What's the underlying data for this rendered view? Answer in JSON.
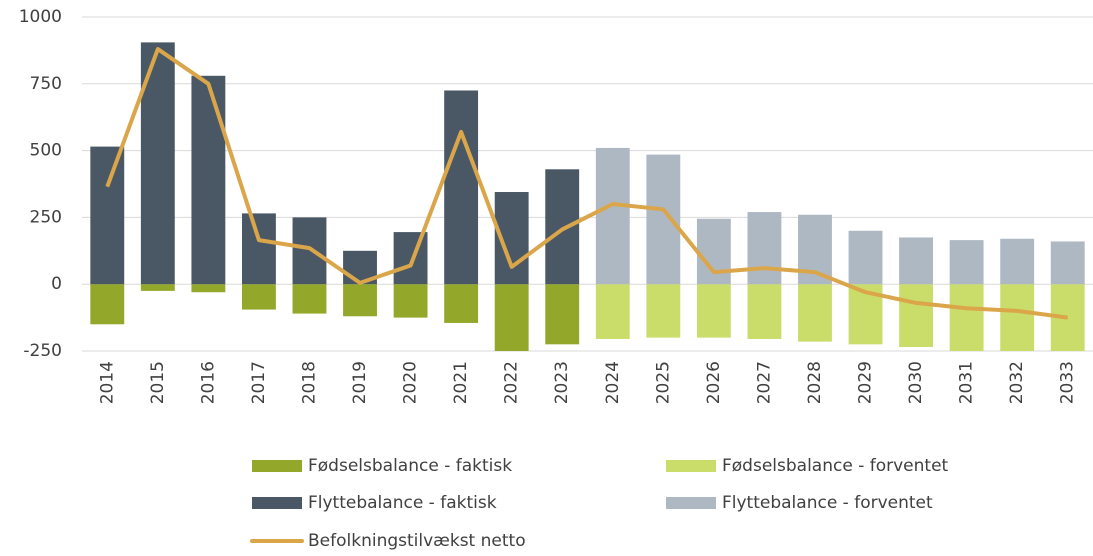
{
  "chart_data": {
    "type": "bar",
    "categories": [
      "2014",
      "2015",
      "2016",
      "2017",
      "2018",
      "2019",
      "2020",
      "2021",
      "2022",
      "2023",
      "2024",
      "2025",
      "2026",
      "2027",
      "2028",
      "2029",
      "2030",
      "2031",
      "2032",
      "2033"
    ],
    "series": [
      {
        "name": "Fødselsbalance - faktisk",
        "color": "#93a82a",
        "values": [
          -150,
          -25,
          -30,
          -95,
          -110,
          -120,
          -125,
          -145,
          -255,
          -225,
          null,
          null,
          null,
          null,
          null,
          null,
          null,
          null,
          null,
          null
        ]
      },
      {
        "name": "Fødselsbalance - forventet",
        "color": "#cadd6b",
        "values": [
          null,
          null,
          null,
          null,
          null,
          null,
          null,
          null,
          null,
          null,
          -205,
          -200,
          -200,
          -205,
          -215,
          -225,
          -235,
          -250,
          -250,
          -250
        ]
      },
      {
        "name": "Flyttebalance - faktisk",
        "color": "#4a5866",
        "values": [
          515,
          905,
          780,
          265,
          250,
          125,
          195,
          725,
          345,
          430,
          null,
          null,
          null,
          null,
          null,
          null,
          null,
          null,
          null,
          null
        ]
      },
      {
        "name": "Flyttebalance - forventet",
        "color": "#aeb8c3",
        "values": [
          null,
          null,
          null,
          null,
          null,
          null,
          null,
          null,
          null,
          null,
          510,
          485,
          245,
          270,
          260,
          200,
          175,
          165,
          170,
          160
        ]
      },
      {
        "name": "Befolkningstilvækst netto",
        "color": "#dba64a",
        "type": "line",
        "values": [
          365,
          880,
          750,
          165,
          135,
          5,
          70,
          570,
          65,
          205,
          300,
          280,
          45,
          60,
          45,
          -30,
          -70,
          -90,
          -100,
          -125
        ]
      }
    ],
    "ylim": [
      -250,
      1000
    ],
    "yticks": [
      -250,
      0,
      250,
      500,
      750,
      1000
    ],
    "grid": true,
    "legend": "bottom"
  }
}
